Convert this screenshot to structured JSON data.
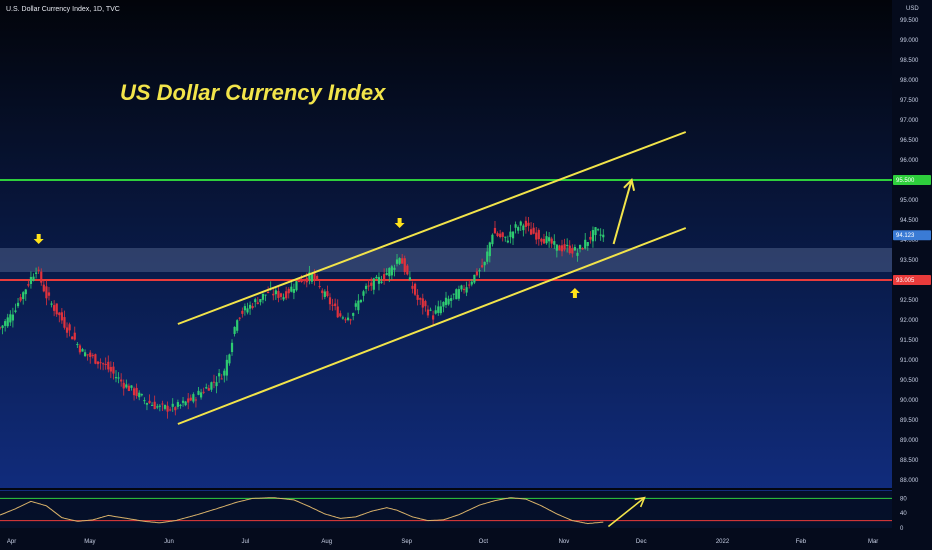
{
  "header": {
    "symbol_title": "U.S. Dollar Currency Index, 1D, TVC"
  },
  "annotation": {
    "title": "US Dollar Currency Index",
    "color": "#f2e44a"
  },
  "colors": {
    "up": "#2ecc71",
    "down": "#e0323c",
    "resistance": "#2ecf3c",
    "support": "#e93b3b",
    "channel": "#f2e44a",
    "zone": "#8fa3c8",
    "oscillator": "#d9b26a"
  },
  "chart_data": [
    {
      "type": "candlestick",
      "currency_label": "USD",
      "ylim": [
        87.8,
        99.7
      ],
      "x_ticks": [
        {
          "label": "Apr",
          "day": 5
        },
        {
          "label": "May",
          "day": 35
        },
        {
          "label": "Jun",
          "day": 66
        },
        {
          "label": "Jul",
          "day": 96
        },
        {
          "label": "Aug",
          "day": 127
        },
        {
          "label": "Sep",
          "day": 158
        },
        {
          "label": "Oct",
          "day": 188
        },
        {
          "label": "Nov",
          "day": 219
        },
        {
          "label": "Dec",
          "day": 249
        },
        {
          "label": "2022",
          "day": 280
        },
        {
          "label": "Feb",
          "day": 311
        },
        {
          "label": "Mar",
          "day": 339
        }
      ],
      "y_ticks": [
        "88.000",
        "88.500",
        "89.000",
        "89.500",
        "90.000",
        "90.500",
        "91.000",
        "91.500",
        "92.000",
        "92.500",
        "93.000",
        "93.500",
        "94.000",
        "94.500",
        "95.000",
        "95.500",
        "96.000",
        "96.500",
        "97.000",
        "97.500",
        "98.000",
        "98.500",
        "99.000",
        "99.500"
      ],
      "price_markers": [
        {
          "label": "95.500",
          "value": 95.5,
          "color": "#2ecf3c"
        },
        {
          "label": "94.123",
          "value": 94.12,
          "color": "#3a7bd5"
        },
        {
          "label": "93.005",
          "value": 93.0,
          "color": "#e93b3b"
        }
      ],
      "horizontal_levels": [
        {
          "name": "resistance",
          "value": 95.5
        },
        {
          "name": "support",
          "value": 93.0
        }
      ],
      "zone": [
        93.2,
        93.8
      ],
      "channel": [
        {
          "from": [
            69,
            91.9
          ],
          "to": [
            266,
            96.7
          ]
        },
        {
          "from": [
            69,
            89.4
          ],
          "to": [
            266,
            94.3
          ]
        }
      ],
      "projection_arrow": {
        "from": [
          238,
          93.9
        ],
        "to": [
          245,
          95.5
        ]
      },
      "marker_arrows": [
        {
          "day": 15,
          "value": 94.0,
          "dir": "down"
        },
        {
          "day": 155,
          "value": 94.4,
          "dir": "down"
        },
        {
          "day": 223,
          "value": 92.7,
          "dir": "up"
        }
      ],
      "close_anchors": [
        [
          0,
          91.8
        ],
        [
          4,
          92.1
        ],
        [
          10,
          92.8
        ],
        [
          14,
          93.3
        ],
        [
          18,
          92.6
        ],
        [
          24,
          92.0
        ],
        [
          32,
          91.2
        ],
        [
          40,
          90.9
        ],
        [
          48,
          90.4
        ],
        [
          56,
          90.0
        ],
        [
          62,
          89.8
        ],
        [
          68,
          89.8
        ],
        [
          74,
          90.0
        ],
        [
          80,
          90.3
        ],
        [
          87,
          90.7
        ],
        [
          92,
          92.1
        ],
        [
          98,
          92.4
        ],
        [
          104,
          92.7
        ],
        [
          110,
          92.6
        ],
        [
          116,
          93.0
        ],
        [
          121,
          93.1
        ],
        [
          126,
          92.6
        ],
        [
          132,
          92.1
        ],
        [
          136,
          92.1
        ],
        [
          142,
          92.8
        ],
        [
          147,
          93.0
        ],
        [
          152,
          93.3
        ],
        [
          155,
          93.6
        ],
        [
          158,
          93.1
        ],
        [
          162,
          92.5
        ],
        [
          168,
          92.1
        ],
        [
          172,
          92.4
        ],
        [
          176,
          92.6
        ],
        [
          180,
          92.8
        ],
        [
          184,
          93.1
        ],
        [
          188,
          93.4
        ],
        [
          191,
          94.2
        ],
        [
          196,
          94.0
        ],
        [
          200,
          94.3
        ],
        [
          203,
          94.4
        ],
        [
          206,
          94.2
        ],
        [
          212,
          94.0
        ],
        [
          216,
          93.8
        ],
        [
          220,
          93.8
        ],
        [
          224,
          93.7
        ],
        [
          228,
          94.0
        ],
        [
          231,
          94.2
        ],
        [
          234,
          94.1
        ]
      ],
      "oscillator": {
        "ylim": [
          0,
          100
        ],
        "y_ticks": [
          "80",
          "40",
          "0"
        ],
        "levels": [
          80,
          20
        ],
        "anchors": [
          [
            0,
            35
          ],
          [
            6,
            52
          ],
          [
            12,
            72
          ],
          [
            18,
            60
          ],
          [
            24,
            28
          ],
          [
            30,
            18
          ],
          [
            36,
            22
          ],
          [
            42,
            34
          ],
          [
            50,
            25
          ],
          [
            56,
            18
          ],
          [
            62,
            14
          ],
          [
            68,
            20
          ],
          [
            76,
            35
          ],
          [
            84,
            52
          ],
          [
            92,
            70
          ],
          [
            98,
            80
          ],
          [
            106,
            82
          ],
          [
            114,
            76
          ],
          [
            120,
            58
          ],
          [
            126,
            38
          ],
          [
            132,
            26
          ],
          [
            138,
            30
          ],
          [
            144,
            45
          ],
          [
            150,
            55
          ],
          [
            154,
            48
          ],
          [
            160,
            30
          ],
          [
            166,
            20
          ],
          [
            172,
            22
          ],
          [
            178,
            36
          ],
          [
            186,
            62
          ],
          [
            192,
            74
          ],
          [
            198,
            82
          ],
          [
            204,
            78
          ],
          [
            210,
            60
          ],
          [
            216,
            38
          ],
          [
            222,
            20
          ],
          [
            228,
            12
          ],
          [
            234,
            16
          ]
        ],
        "arrow": {
          "from": [
            236,
            4
          ],
          "to": [
            250,
            82
          ]
        }
      }
    }
  ]
}
